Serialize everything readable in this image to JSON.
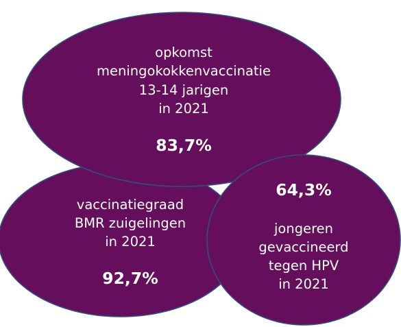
{
  "bubbles": {
    "meningokokken": {
      "label": [
        "opkomst",
        "meningokokkenvaccinatie",
        "13-14 jarigen",
        "in 2021"
      ],
      "value": "83,7%"
    },
    "bmr": {
      "label": [
        "vaccinatiegraad",
        "BMR zuigelingen",
        "in 2021"
      ],
      "value": "92,7%"
    },
    "hpv": {
      "value": "64,3%",
      "label": [
        "jongeren",
        "gevaccineerd",
        "tegen HPV",
        "in 2021"
      ]
    }
  },
  "colors": {
    "bubble_fill": "#650f5c",
    "bubble_outline": "#2f4f7f",
    "text": "#ffffff"
  }
}
